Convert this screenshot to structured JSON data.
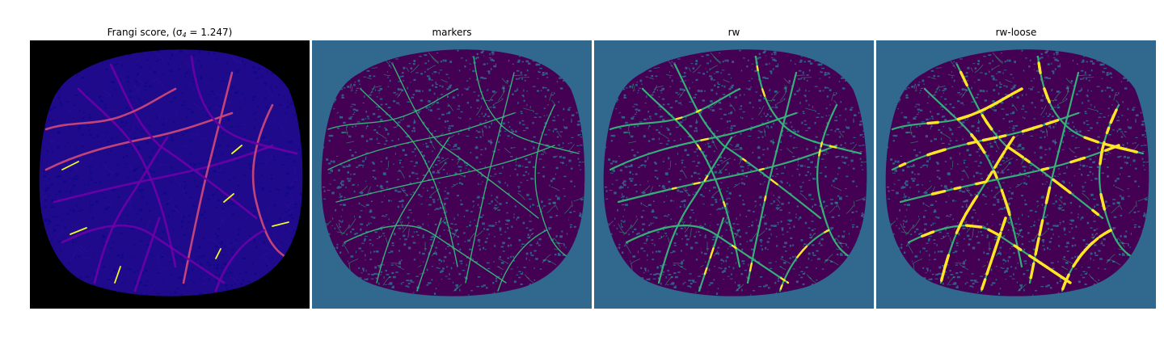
{
  "figure": {
    "panels": [
      {
        "id": "frangi",
        "title_prefix": "Frangi score, (",
        "title_symbol": "σ",
        "title_subscript": "4",
        "title_suffix": " = 1.247)",
        "colormap": "plasma",
        "colors": {
          "background": "#000000",
          "tissue": "#1f0a8c",
          "vessel_low": "#6a00a8",
          "vessel_mid": "#cc4778",
          "vessel_high": "#f0f921"
        }
      },
      {
        "id": "markers",
        "title": "markers",
        "colormap": "viridis",
        "colors": {
          "background": "#31688e",
          "tissue": "#440154",
          "vessel": "#35b779"
        }
      },
      {
        "id": "rw",
        "title": "rw",
        "colormap": "viridis",
        "colors": {
          "background": "#31688e",
          "tissue": "#440154",
          "vessel": "#35b779",
          "highlight": "#fde725"
        }
      },
      {
        "id": "rw-loose",
        "title": "rw-loose",
        "colormap": "viridis",
        "colors": {
          "background": "#31688e",
          "tissue": "#440154",
          "vessel": "#35b779",
          "highlight": "#fde725"
        }
      }
    ]
  }
}
